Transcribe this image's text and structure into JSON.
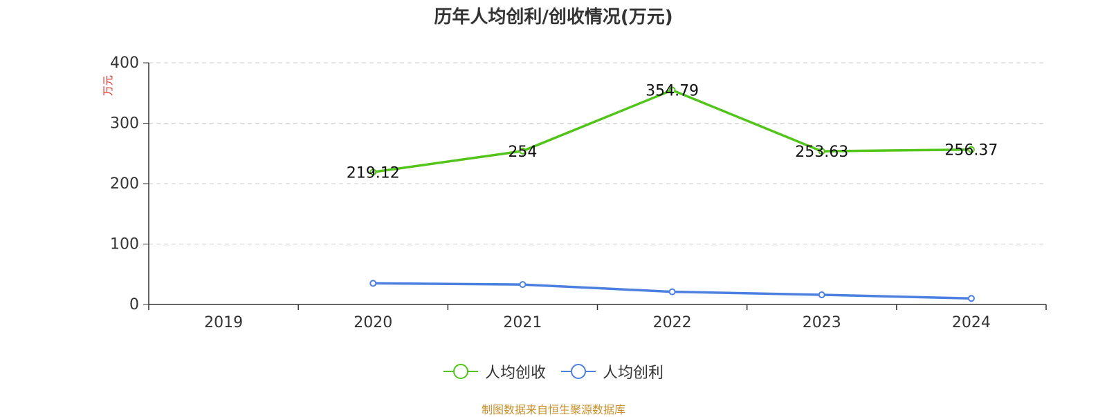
{
  "title": "历年人均创利/创收情况(万元)",
  "unit_label": "万元",
  "source": "制图数据来自恒生聚源数据库",
  "colors": {
    "revenue": "#52c41a",
    "profit": "#4b7fe0",
    "grid": "#cccccc",
    "axis": "#333333",
    "unit": "#e8281e",
    "source": "#c8902a"
  },
  "chart_data": {
    "type": "line",
    "categories": [
      "2019",
      "2020",
      "2021",
      "2022",
      "2023",
      "2024"
    ],
    "ylim": [
      0,
      400
    ],
    "yticks": [
      0,
      100,
      200,
      300,
      400
    ],
    "grid": true,
    "legend_position": "bottom",
    "series": [
      {
        "name": "人均创收",
        "color": "#52c41a",
        "values": [
          null,
          219.12,
          254,
          354.79,
          253.63,
          256.37
        ],
        "labels": [
          "",
          "219.12",
          "254",
          "354.79",
          "253.63",
          "256.37"
        ]
      },
      {
        "name": "人均创利",
        "color": "#4b7fe0",
        "values": [
          null,
          35,
          33,
          21,
          16,
          10
        ],
        "labels": [
          "",
          "",
          "",
          "",
          "",
          ""
        ]
      }
    ]
  }
}
